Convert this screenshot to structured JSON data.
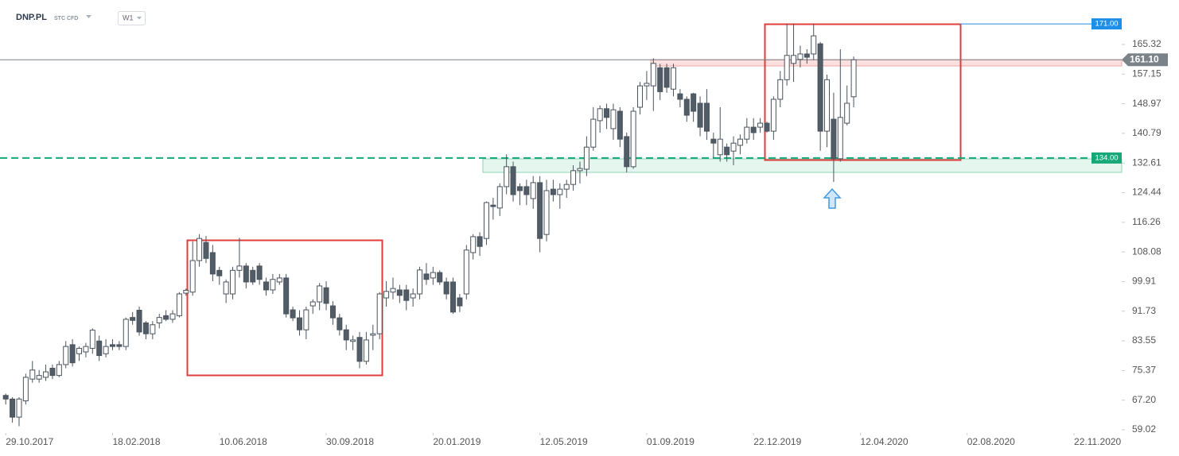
{
  "chart_data": {
    "type": "candlestick",
    "title": "DNP.PL",
    "subtitle": "STC CFD",
    "timeframe": "W1",
    "x": [
      "2017-10-29",
      "2017-11-05",
      "2017-11-12",
      "2017-11-19",
      "2017-11-26",
      "2017-12-03",
      "2017-12-10",
      "2017-12-17",
      "2017-12-24",
      "2017-12-31",
      "2018-01-07",
      "2018-01-14",
      "2018-01-21",
      "2018-01-28",
      "2018-02-04",
      "2018-02-11",
      "2018-02-18",
      "2018-02-25",
      "2018-03-04",
      "2018-03-11",
      "2018-03-18",
      "2018-03-25",
      "2018-04-01",
      "2018-04-08",
      "2018-04-15",
      "2018-04-22",
      "2018-04-29",
      "2018-05-06",
      "2018-05-13",
      "2018-05-20",
      "2018-05-27",
      "2018-06-03",
      "2018-06-10",
      "2018-06-17",
      "2018-06-24",
      "2018-07-01",
      "2018-07-08",
      "2018-07-15",
      "2018-07-22",
      "2018-07-29",
      "2018-08-05",
      "2018-08-12",
      "2018-08-19",
      "2018-08-26",
      "2018-09-02",
      "2018-09-09",
      "2018-09-16",
      "2018-09-23",
      "2018-09-30",
      "2018-10-07",
      "2018-10-14",
      "2018-10-21",
      "2018-10-28",
      "2018-11-04",
      "2018-11-11",
      "2018-11-18",
      "2018-11-25",
      "2018-12-02",
      "2018-12-09",
      "2018-12-16",
      "2018-12-23",
      "2018-12-30",
      "2019-01-06",
      "2019-01-13",
      "2019-01-20",
      "2019-01-27",
      "2019-02-03",
      "2019-02-10",
      "2019-02-17",
      "2019-02-24",
      "2019-03-03",
      "2019-03-10",
      "2019-03-17",
      "2019-03-24",
      "2019-03-31",
      "2019-04-07",
      "2019-04-14",
      "2019-04-21",
      "2019-04-28",
      "2019-05-05",
      "2019-05-12",
      "2019-05-19",
      "2019-05-26",
      "2019-06-02",
      "2019-06-09",
      "2019-06-16",
      "2019-06-23",
      "2019-06-30",
      "2019-07-07",
      "2019-07-14",
      "2019-07-21",
      "2019-07-28",
      "2019-08-04",
      "2019-08-11",
      "2019-08-18",
      "2019-08-25",
      "2019-09-01",
      "2019-09-08",
      "2019-09-15",
      "2019-09-22",
      "2019-09-29",
      "2019-10-06",
      "2019-10-13",
      "2019-10-20",
      "2019-10-27",
      "2019-11-03",
      "2019-11-10",
      "2019-11-17",
      "2019-11-24",
      "2019-12-01",
      "2019-12-08",
      "2019-12-15",
      "2019-12-22",
      "2019-12-29",
      "2020-01-05",
      "2020-01-12",
      "2020-01-19",
      "2020-01-26",
      "2020-02-02",
      "2020-02-09",
      "2020-02-16",
      "2020-02-23",
      "2020-03-01",
      "2020-03-08",
      "2020-03-15",
      "2020-03-22",
      "2020-03-29",
      "2020-04-05"
    ],
    "open": [
      68.5,
      67.5,
      62.5,
      67,
      73,
      73,
      73.5,
      76,
      74,
      77,
      82.5,
      80,
      80.5,
      81.5,
      83.5,
      80,
      82.5,
      82.5,
      82,
      90,
      92,
      88.5,
      85.5,
      88.5,
      90.5,
      89.5,
      90.5,
      96.7,
      97,
      105.7,
      110.7,
      107.9,
      103,
      96.5,
      96.5,
      103,
      104.2,
      103,
      104.2,
      99.8,
      97.6,
      99.8,
      100.9,
      92.1,
      89.9,
      86.6,
      93.2,
      94.3,
      98.2,
      93.2,
      89.9,
      86.6,
      83.4,
      84.5,
      77.9,
      85.1,
      85.5,
      95.4,
      97,
      97.6,
      97.6,
      95.4,
      96.5,
      102,
      100.9,
      102.4,
      99.8,
      99.8,
      95.4,
      96.5,
      107.9,
      112.3,
      111.8,
      121,
      120.2,
      126.1,
      131.6,
      126.1,
      126.1,
      122.8,
      127.2,
      112.9,
      125.4,
      123.9,
      125.4,
      126.7,
      130.5,
      130.9,
      137,
      144.3,
      147.6,
      142.1,
      146.9,
      139.9,
      131.6,
      148,
      153.9,
      153.9,
      158.9,
      158.9,
      153,
      151.7,
      150.2,
      151.7,
      149.1,
      149.1,
      139.2,
      134.9,
      137,
      135.9,
      137.5,
      139.2,
      142.5,
      142.5,
      143.6,
      141.4,
      150.2,
      155.6,
      160.1,
      161.2,
      162.7,
      162.7,
      165.5,
      141.4,
      144.7,
      133.8,
      143.6,
      150.9
    ],
    "high": [
      69,
      68,
      68,
      74.5,
      78,
      75.5,
      77,
      77,
      78,
      83.5,
      84,
      82,
      83,
      87,
      85,
      84,
      84,
      83.5,
      90,
      91.5,
      93,
      89,
      89,
      91,
      92,
      92,
      97,
      98,
      111,
      113,
      112.5,
      110,
      104,
      100.5,
      104,
      112,
      105,
      104,
      105,
      101,
      102,
      102,
      102,
      93,
      92,
      93,
      95,
      99.5,
      100,
      94.5,
      91,
      88,
      85,
      86,
      86,
      88,
      97,
      100,
      101,
      99,
      99,
      98,
      104,
      105,
      104,
      103,
      101,
      101,
      96.5,
      110,
      113,
      113.5,
      122,
      123,
      127,
      135,
      133,
      127,
      128,
      129,
      129,
      128,
      128,
      127,
      128,
      132,
      133,
      140,
      148,
      148.5,
      149,
      149,
      148,
      141,
      148,
      155,
      158,
      161.5,
      160,
      160,
      160,
      153,
      151,
      152,
      151,
      153,
      141,
      148,
      138,
      140,
      140.5,
      145,
      145,
      145,
      144,
      151,
      158,
      171,
      171,
      165,
      164,
      171,
      166,
      157,
      152,
      164,
      154,
      162
    ],
    "low": [
      66,
      61,
      60,
      66,
      72,
      72,
      72.5,
      73,
      73.5,
      76,
      76.5,
      78,
      79,
      80,
      78,
      79,
      81,
      81,
      81,
      88,
      85,
      84,
      84,
      87,
      89,
      88.5,
      90,
      96,
      96,
      104,
      105,
      100,
      99,
      94,
      95,
      101,
      98,
      99,
      99,
      96,
      96.5,
      99,
      90,
      89,
      85,
      84,
      91,
      92,
      92,
      88,
      85,
      81,
      81,
      76,
      77,
      81,
      84,
      93,
      95,
      94,
      92,
      93,
      95,
      99,
      99,
      99,
      95,
      91,
      91.5,
      95,
      106,
      107,
      110,
      117,
      118,
      124,
      122,
      121,
      121,
      120,
      108,
      111,
      122,
      120,
      123,
      125,
      127,
      129,
      136,
      141,
      142,
      139,
      137,
      130,
      131,
      146,
      150,
      147,
      150,
      152,
      151,
      148,
      144,
      144,
      140,
      139,
      134,
      133,
      133,
      132,
      135,
      138,
      139,
      141,
      141,
      139,
      148,
      154,
      155,
      159,
      160,
      161,
      136,
      137,
      127.4,
      133,
      143,
      148
    ],
    "close": [
      67.5,
      62.5,
      67.5,
      73.5,
      75.5,
      74,
      75,
      74,
      77,
      82,
      77.5,
      81.5,
      82,
      86.5,
      79.5,
      82,
      82,
      82,
      89.5,
      89.2,
      86,
      85.5,
      88,
      90,
      89.5,
      91,
      96.5,
      97.5,
      105.7,
      111.8,
      106.3,
      102,
      101.5,
      99.8,
      103,
      104.2,
      99.8,
      99.8,
      100.5,
      97.6,
      100.5,
      100.9,
      91,
      89.9,
      86.6,
      92.1,
      94.3,
      98.7,
      93.9,
      89.9,
      86.6,
      83.8,
      83.8,
      77.9,
      83.8,
      85.5,
      96.5,
      97.2,
      98,
      96.1,
      94.7,
      96.5,
      103.1,
      100.5,
      102.4,
      99.8,
      96.5,
      91.5,
      93.2,
      108.6,
      112.3,
      109.6,
      121.7,
      120.6,
      126.1,
      131.6,
      123.9,
      125,
      123.9,
      127.2,
      111.8,
      125,
      123.9,
      125.4,
      126.7,
      130.5,
      131.1,
      137,
      144.7,
      147.6,
      145.2,
      147.3,
      139.2,
      131.6,
      146.9,
      153.9,
      154.6,
      160.1,
      152.3,
      153.5,
      158.9,
      150.2,
      145.8,
      146.9,
      142.5,
      141.4,
      138.1,
      139.2,
      134.9,
      138.1,
      139.2,
      142.5,
      141,
      143.6,
      141.4,
      150.2,
      155.6,
      162.3,
      162.3,
      162.7,
      161.8,
      167.7,
      141.4,
      155.6,
      133.8,
      145.2,
      149.1,
      161.1
    ],
    "up_color": "#ffffff",
    "down_color": "#515c66",
    "outline_color": "#4a545d",
    "xlim": [
      "2017-10-23",
      "2021-01-11"
    ],
    "xticks": [
      {
        "value": "2017-10-29",
        "label": "29.10.2017"
      },
      {
        "value": "2018-02-18",
        "label": "18.02.2018"
      },
      {
        "value": "2018-06-10",
        "label": "10.06.2018"
      },
      {
        "value": "2018-09-30",
        "label": "30.09.2018"
      },
      {
        "value": "2019-01-20",
        "label": "20.01.2019"
      },
      {
        "value": "2019-05-12",
        "label": "12.05.2019"
      },
      {
        "value": "2019-09-01",
        "label": "01.09.2019"
      },
      {
        "value": "2019-12-22",
        "label": "22.12.2019"
      },
      {
        "value": "2020-04-12",
        "label": "12.04.2020"
      },
      {
        "value": "2020-08-02",
        "label": "02.08.2020"
      },
      {
        "value": "2020-11-22",
        "label": "22.11.2020"
      }
    ],
    "ylim": [
      58.14,
      177.59
    ],
    "yticks": [
      59.02,
      {
        "value": 67.2,
        "label": "67.20"
      },
      75.37,
      83.55,
      91.73,
      99.91,
      108.08,
      116.26,
      124.44,
      132.61,
      140.79,
      148.97,
      157.15,
      165.32
    ],
    "levels": [
      {
        "value": 171,
        "label": "171.00",
        "color": "#1e8fe8",
        "style": "solid"
      },
      {
        "value": 161.1,
        "label": "161.10",
        "color": "#7b8288",
        "style": "solid"
      },
      {
        "value": 134,
        "label": "134.00",
        "color": "#16a878",
        "style": "dashed"
      }
    ]
  }
}
